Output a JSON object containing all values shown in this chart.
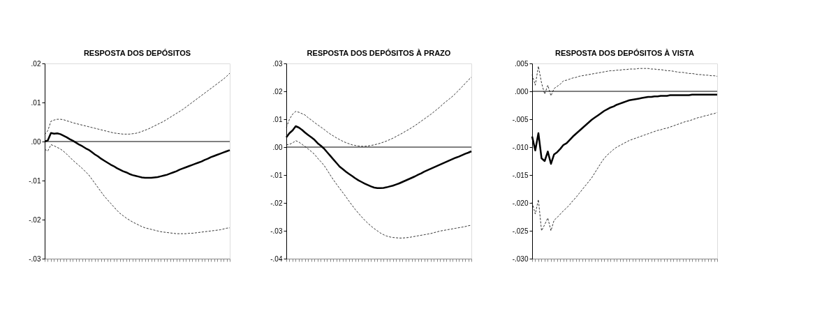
{
  "chart_data": [
    {
      "type": "line",
      "title": "RESPOSTA DOS DEPÓSITOS",
      "categories": [
        null,
        null,
        null,
        null,
        null,
        null,
        null,
        null,
        null,
        null,
        null,
        null,
        null,
        null,
        null,
        null,
        null,
        null,
        null,
        null,
        null,
        null,
        null,
        null,
        null,
        null,
        null,
        null,
        null,
        null,
        null,
        null,
        null,
        null,
        null,
        null,
        null,
        null,
        null,
        null,
        null,
        null,
        null,
        null,
        null,
        null,
        null,
        null,
        null,
        null,
        null,
        null,
        null,
        null,
        null,
        null,
        null,
        null,
        null,
        null
      ],
      "ylim": [
        -0.03,
        0.02
      ],
      "yticks": [
        {
          "value": -0.03,
          "label": "-.03"
        },
        {
          "value": -0.02,
          "label": "-.02"
        },
        {
          "value": -0.01,
          "label": "-.01"
        },
        {
          "value": 0,
          "label": ".00"
        },
        {
          "value": 0.01,
          "label": ".01"
        },
        {
          "value": 0.02,
          "label": ".02"
        }
      ],
      "tick_labels": "y",
      "grid": false,
      "marker": "none",
      "ref_lines": [
        {
          "axis": "y",
          "value": 0,
          "color": "#000000",
          "line_style": "solid"
        }
      ],
      "series": [
        {
          "color": "#000000",
          "line_style": "dashed",
          "values": [
            0.0018,
            0.0028,
            0.0052,
            0.0055,
            0.0057,
            0.0057,
            0.0056,
            0.0053,
            0.0051,
            0.0048,
            0.0046,
            0.0044,
            0.0042,
            0.004,
            0.0038,
            0.0036,
            0.0034,
            0.0032,
            0.003,
            0.0028,
            0.0026,
            0.0024,
            0.0022,
            0.0021,
            0.002,
            0.0019,
            0.0019,
            0.0019,
            0.002,
            0.0021,
            0.0023,
            0.0026,
            0.0029,
            0.0032,
            0.0036,
            0.004,
            0.0044,
            0.0048,
            0.0052,
            0.0057,
            0.0062,
            0.0067,
            0.0072,
            0.0077,
            0.0082,
            0.0088,
            0.0094,
            0.01,
            0.0106,
            0.0112,
            0.0118,
            0.0124,
            0.013,
            0.0136,
            0.0142,
            0.0148,
            0.0154,
            0.016,
            0.0167,
            0.0175
          ]
        },
        {
          "color": "#000000",
          "line_style": "solid",
          "values": [
            0,
            0.0003,
            0.0022,
            0.002,
            0.0021,
            0.0019,
            0.0015,
            0.0011,
            0.0006,
            0.0002,
            -0.0003,
            -0.0008,
            -0.0012,
            -0.0017,
            -0.0021,
            -0.0027,
            -0.0033,
            -0.0038,
            -0.0044,
            -0.0049,
            -0.0054,
            -0.0059,
            -0.0063,
            -0.0068,
            -0.0072,
            -0.0076,
            -0.0079,
            -0.0083,
            -0.0086,
            -0.0088,
            -0.009,
            -0.0092,
            -0.0093,
            -0.0093,
            -0.0093,
            -0.0092,
            -0.0091,
            -0.0089,
            -0.0087,
            -0.0085,
            -0.0082,
            -0.0079,
            -0.0076,
            -0.0072,
            -0.0069,
            -0.0066,
            -0.0063,
            -0.006,
            -0.0057,
            -0.0054,
            -0.0051,
            -0.0047,
            -0.0044,
            -0.004,
            -0.0037,
            -0.0034,
            -0.0031,
            -0.0028,
            -0.0025,
            -0.0022
          ]
        },
        {
          "color": "#000000",
          "line_style": "dashed",
          "values": [
            -0.002,
            -0.0024,
            -0.0008,
            -0.0011,
            -0.0015,
            -0.0019,
            -0.0025,
            -0.0032,
            -0.004,
            -0.0048,
            -0.0055,
            -0.0062,
            -0.0069,
            -0.0077,
            -0.0085,
            -0.0096,
            -0.0107,
            -0.0118,
            -0.0129,
            -0.014,
            -0.0149,
            -0.0158,
            -0.0167,
            -0.0176,
            -0.0184,
            -0.019,
            -0.0196,
            -0.0201,
            -0.0206,
            -0.021,
            -0.0214,
            -0.0218,
            -0.0221,
            -0.0223,
            -0.0225,
            -0.0227,
            -0.0229,
            -0.0231,
            -0.0232,
            -0.0233,
            -0.0234,
            -0.0235,
            -0.0236,
            -0.0236,
            -0.0236,
            -0.0236,
            -0.0235,
            -0.0235,
            -0.0234,
            -0.0233,
            -0.0232,
            -0.0231,
            -0.023,
            -0.0229,
            -0.0228,
            -0.0227,
            -0.0226,
            -0.0224,
            -0.0222,
            -0.0221
          ]
        }
      ]
    },
    {
      "type": "line",
      "title": "RESPOSTA DOS DEPÓSITOS À PRAZO",
      "categories": [
        null,
        null,
        null,
        null,
        null,
        null,
        null,
        null,
        null,
        null,
        null,
        null,
        null,
        null,
        null,
        null,
        null,
        null,
        null,
        null,
        null,
        null,
        null,
        null,
        null,
        null,
        null,
        null,
        null,
        null,
        null,
        null,
        null,
        null,
        null,
        null,
        null,
        null,
        null,
        null,
        null,
        null,
        null,
        null,
        null,
        null,
        null,
        null,
        null,
        null,
        null,
        null,
        null,
        null,
        null,
        null,
        null,
        null,
        null,
        null
      ],
      "ylim": [
        -0.04,
        0.03
      ],
      "yticks": [
        {
          "value": -0.04,
          "label": "-.04"
        },
        {
          "value": -0.03,
          "label": "-.03"
        },
        {
          "value": -0.02,
          "label": "-.02"
        },
        {
          "value": -0.01,
          "label": "-.01"
        },
        {
          "value": 0,
          "label": ".00"
        },
        {
          "value": 0.01,
          "label": ".01"
        },
        {
          "value": 0.02,
          "label": ".02"
        },
        {
          "value": 0.03,
          "label": ".03"
        }
      ],
      "tick_labels": "y",
      "grid": false,
      "marker": "none",
      "ref_lines": [
        {
          "axis": "y",
          "value": 0,
          "color": "#000000",
          "line_style": "solid"
        }
      ],
      "series": [
        {
          "color": "#000000",
          "line_style": "dashed",
          "values": [
            0.007,
            0.01,
            0.0118,
            0.0128,
            0.0125,
            0.012,
            0.0115,
            0.0105,
            0.0097,
            0.0088,
            0.008,
            0.0072,
            0.0064,
            0.0055,
            0.0047,
            0.004,
            0.0033,
            0.0027,
            0.0021,
            0.0016,
            0.0012,
            0.0008,
            0.0006,
            0.0004,
            0.0003,
            0.0003,
            0.0004,
            0.0006,
            0.0008,
            0.0011,
            0.0014,
            0.0018,
            0.0022,
            0.0027,
            0.0032,
            0.0038,
            0.0044,
            0.005,
            0.0057,
            0.0063,
            0.007,
            0.0077,
            0.0085,
            0.0093,
            0.0101,
            0.0109,
            0.0117,
            0.0126,
            0.0135,
            0.0144,
            0.0155,
            0.0164,
            0.0173,
            0.0182,
            0.0193,
            0.0204,
            0.0216,
            0.0228,
            0.024,
            0.0251
          ]
        },
        {
          "color": "#000000",
          "line_style": "solid",
          "values": [
            0.0035,
            0.005,
            0.006,
            0.0075,
            0.007,
            0.0062,
            0.0052,
            0.0043,
            0.0035,
            0.0026,
            0.0014,
            0.0005,
            -0.0005,
            -0.0018,
            -0.0031,
            -0.0044,
            -0.0057,
            -0.007,
            -0.0079,
            -0.0088,
            -0.0096,
            -0.0104,
            -0.0112,
            -0.0119,
            -0.0125,
            -0.0131,
            -0.0136,
            -0.0141,
            -0.0145,
            -0.0147,
            -0.0147,
            -0.0146,
            -0.0144,
            -0.0141,
            -0.0138,
            -0.0134,
            -0.013,
            -0.0125,
            -0.012,
            -0.0115,
            -0.011,
            -0.0105,
            -0.0099,
            -0.0094,
            -0.0088,
            -0.0083,
            -0.0078,
            -0.0073,
            -0.0068,
            -0.0063,
            -0.0058,
            -0.0053,
            -0.0048,
            -0.0043,
            -0.0038,
            -0.0034,
            -0.0029,
            -0.0024,
            -0.002,
            -0.0015
          ]
        },
        {
          "color": "#000000",
          "line_style": "dashed",
          "values": [
            0.0008,
            0.001,
            0.0015,
            0.0023,
            0.0018,
            0.001,
            0.0002,
            -0.0007,
            -0.0016,
            -0.0026,
            -0.004,
            -0.0052,
            -0.0065,
            -0.0082,
            -0.01,
            -0.0117,
            -0.0133,
            -0.0148,
            -0.0163,
            -0.0178,
            -0.0194,
            -0.0209,
            -0.0224,
            -0.0237,
            -0.025,
            -0.0262,
            -0.0273,
            -0.0283,
            -0.0292,
            -0.03,
            -0.0308,
            -0.0314,
            -0.0319,
            -0.0322,
            -0.0324,
            -0.0325,
            -0.0326,
            -0.0326,
            -0.0325,
            -0.0324,
            -0.0322,
            -0.032,
            -0.0318,
            -0.0316,
            -0.0314,
            -0.0312,
            -0.031,
            -0.0307,
            -0.0304,
            -0.0301,
            -0.0299,
            -0.0297,
            -0.0295,
            -0.0293,
            -0.0291,
            -0.0289,
            -0.0287,
            -0.0285,
            -0.0282,
            -0.028
          ]
        }
      ]
    },
    {
      "type": "line",
      "title": "RESPOSTA DOS DEPÓSITOS À VISTA",
      "categories": [
        null,
        null,
        null,
        null,
        null,
        null,
        null,
        null,
        null,
        null,
        null,
        null,
        null,
        null,
        null,
        null,
        null,
        null,
        null,
        null,
        null,
        null,
        null,
        null,
        null,
        null,
        null,
        null,
        null,
        null,
        null,
        null,
        null,
        null,
        null,
        null,
        null,
        null,
        null,
        null,
        null,
        null,
        null,
        null,
        null,
        null,
        null,
        null,
        null,
        null,
        null,
        null,
        null,
        null,
        null,
        null,
        null,
        null,
        null,
        null
      ],
      "ylim": [
        -0.03,
        0.005
      ],
      "yticks": [
        {
          "value": -0.03,
          "label": "-.030"
        },
        {
          "value": -0.025,
          "label": "-.025"
        },
        {
          "value": -0.02,
          "label": "-.020"
        },
        {
          "value": -0.015,
          "label": "-.015"
        },
        {
          "value": -0.01,
          "label": "-.010"
        },
        {
          "value": -0.005,
          "label": "-.005"
        },
        {
          "value": 0,
          "label": ".000"
        },
        {
          "value": 0.005,
          "label": ".005"
        }
      ],
      "tick_labels": "y",
      "grid": false,
      "marker": "none",
      "ref_lines": [
        {
          "axis": "y",
          "value": 0,
          "color": "#000000",
          "line_style": "solid"
        }
      ],
      "series": [
        {
          "color": "#000000",
          "line_style": "dashed",
          "values": [
            0.003,
            0.0011,
            0.0045,
            0.0015,
            -0.0005,
            0.0011,
            -0.0008,
            0.0005,
            0.0009,
            0.0013,
            0.0019,
            0.002,
            0.0022,
            0.0024,
            0.0025,
            0.0027,
            0.0028,
            0.0029,
            0.003,
            0.0031,
            0.0032,
            0.0033,
            0.0034,
            0.0035,
            0.0036,
            0.0037,
            0.0037,
            0.0038,
            0.0038,
            0.0039,
            0.0039,
            0.004,
            0.004,
            0.004,
            0.0041,
            0.0041,
            0.0041,
            0.0041,
            0.004,
            0.004,
            0.0039,
            0.0039,
            0.0038,
            0.0037,
            0.0037,
            0.0036,
            0.0035,
            0.0034,
            0.0034,
            0.0033,
            0.0032,
            0.0032,
            0.0031,
            0.003,
            0.003,
            0.0029,
            0.0029,
            0.0028,
            0.0028,
            0.0027
          ]
        },
        {
          "color": "#000000",
          "line_style": "solid",
          "values": [
            -0.0081,
            -0.0106,
            -0.0075,
            -0.012,
            -0.0125,
            -0.0108,
            -0.013,
            -0.0113,
            -0.0109,
            -0.0103,
            -0.0096,
            -0.0093,
            -0.0087,
            -0.0081,
            -0.0076,
            -0.0071,
            -0.0066,
            -0.0061,
            -0.0056,
            -0.0051,
            -0.0047,
            -0.0043,
            -0.0039,
            -0.0035,
            -0.0032,
            -0.0029,
            -0.0027,
            -0.0024,
            -0.0022,
            -0.002,
            -0.0018,
            -0.0016,
            -0.0015,
            -0.0014,
            -0.0013,
            -0.0012,
            -0.0011,
            -0.001,
            -0.001,
            -0.0009,
            -0.0009,
            -0.0008,
            -0.0008,
            -0.0008,
            -0.0007,
            -0.0007,
            -0.0007,
            -0.0007,
            -0.0007,
            -0.0007,
            -0.0007,
            -0.0006,
            -0.0006,
            -0.0006,
            -0.0006,
            -0.0006,
            -0.0006,
            -0.0006,
            -0.0006,
            -0.0006
          ]
        },
        {
          "color": "#000000",
          "line_style": "dashed",
          "values": [
            -0.0199,
            -0.022,
            -0.0194,
            -0.025,
            -0.0239,
            -0.0227,
            -0.025,
            -0.0231,
            -0.0226,
            -0.022,
            -0.0214,
            -0.0209,
            -0.0203,
            -0.0196,
            -0.019,
            -0.0183,
            -0.0176,
            -0.0169,
            -0.0162,
            -0.0155,
            -0.0146,
            -0.0137,
            -0.0128,
            -0.012,
            -0.0114,
            -0.0109,
            -0.0104,
            -0.01,
            -0.0097,
            -0.0094,
            -0.0091,
            -0.0088,
            -0.0086,
            -0.0084,
            -0.0082,
            -0.008,
            -0.0078,
            -0.0076,
            -0.0074,
            -0.0072,
            -0.007,
            -0.0069,
            -0.0067,
            -0.0066,
            -0.0064,
            -0.0062,
            -0.006,
            -0.0058,
            -0.0056,
            -0.0054,
            -0.0053,
            -0.0051,
            -0.0049,
            -0.0047,
            -0.0046,
            -0.0044,
            -0.0043,
            -0.0041,
            -0.004,
            -0.0038
          ]
        }
      ]
    }
  ]
}
